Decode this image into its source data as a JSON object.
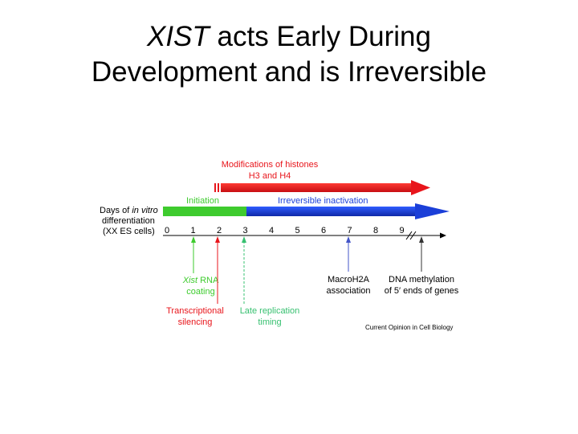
{
  "slide": {
    "title_italic": "XIST",
    "title_line1_rest": " acts Early During",
    "title_line2": "Development and is Irreversible"
  },
  "diagram": {
    "histone_label_1": "Modifications of histones",
    "histone_label_2": "H3 and H4",
    "initiation_label": "Initiation",
    "irreversible_label": "Irreversible inactivation",
    "axis_label_1_prefix": "Days of ",
    "axis_label_1_italic": "in vitro",
    "axis_label_2": "differentiation",
    "axis_label_3": "(XX ES cells)",
    "days": [
      "0",
      "1",
      "2",
      "3",
      "4",
      "5",
      "6",
      "7",
      "8",
      "9"
    ],
    "xist_label_italic": "Xist",
    "xist_label_rest": " RNA",
    "xist_label_2": "coating",
    "silencing_label_1": "Transcriptional",
    "silencing_label_2": "silencing",
    "replication_label_1": "Late replication",
    "replication_label_2": "timing",
    "macro_label_1": "MacroH2A",
    "macro_label_2": "association",
    "methyl_label_1": "DNA methylation",
    "methyl_label_2": "of 5′ ends of genes",
    "credit": "Current Opinion in Cell Biology",
    "colors": {
      "red": "#e8151b",
      "green": "#3ecb2e",
      "blue": "#1b3fd8",
      "light_green": "#37c070",
      "purple_blue": "#4355c8",
      "gray": "#333333"
    }
  }
}
